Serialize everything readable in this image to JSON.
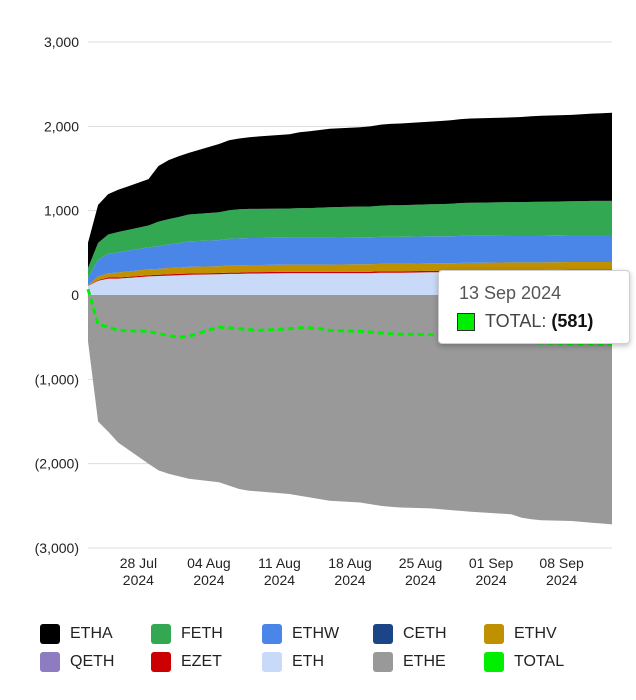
{
  "chart_data": {
    "type": "area",
    "stacked": true,
    "y_ticks": [
      "3,000",
      "2,000",
      "1,000",
      "0",
      "(1,000)",
      "(2,000)",
      "(3,000)"
    ],
    "ylim": [
      -3000,
      3000
    ],
    "x_ticks": [
      {
        "date": "2024-07-28",
        "line1": "28 Jul",
        "line2": "2024"
      },
      {
        "date": "2024-08-04",
        "line1": "04 Aug",
        "line2": "2024"
      },
      {
        "date": "2024-08-11",
        "line1": "11 Aug",
        "line2": "2024"
      },
      {
        "date": "2024-08-18",
        "line1": "18 Aug",
        "line2": "2024"
      },
      {
        "date": "2024-08-25",
        "line1": "25 Aug",
        "line2": "2024"
      },
      {
        "date": "2024-09-01",
        "line1": "01 Sep",
        "line2": "2024"
      },
      {
        "date": "2024-09-08",
        "line1": "08 Sep",
        "line2": "2024"
      }
    ],
    "xlim": [
      "2024-07-23",
      "2024-09-13"
    ],
    "dates": [
      "2024-07-23",
      "2024-07-24",
      "2024-07-25",
      "2024-07-26",
      "2024-07-29",
      "2024-07-30",
      "2024-07-31",
      "2024-08-01",
      "2024-08-02",
      "2024-08-05",
      "2024-08-06",
      "2024-08-07",
      "2024-08-08",
      "2024-08-09",
      "2024-08-12",
      "2024-08-13",
      "2024-08-14",
      "2024-08-15",
      "2024-08-16",
      "2024-08-19",
      "2024-08-20",
      "2024-08-21",
      "2024-08-22",
      "2024-08-23",
      "2024-08-26",
      "2024-08-27",
      "2024-08-28",
      "2024-08-29",
      "2024-08-30",
      "2024-09-03",
      "2024-09-04",
      "2024-09-05",
      "2024-09-06",
      "2024-09-09",
      "2024-09-10",
      "2024-09-11",
      "2024-09-12",
      "2024-09-13"
    ],
    "series": [
      {
        "name": "ETH",
        "color": "#c9daf8",
        "values": [
          107,
          170,
          195,
          195,
          220,
          225,
          230,
          235,
          240,
          245,
          250,
          250,
          255,
          255,
          260,
          260,
          260,
          260,
          260,
          260,
          260,
          265,
          265,
          265,
          270,
          270,
          270,
          275,
          275,
          280,
          280,
          280,
          280,
          285,
          285,
          285,
          285,
          285
        ]
      },
      {
        "name": "EZET",
        "color": "#cc0000",
        "values": [
          3,
          8,
          12,
          12,
          14,
          15,
          15,
          15,
          15,
          16,
          16,
          16,
          16,
          16,
          16,
          16,
          16,
          16,
          16,
          16,
          16,
          16,
          16,
          16,
          16,
          16,
          16,
          16,
          16,
          16,
          16,
          16,
          16,
          16,
          16,
          16,
          16,
          16
        ]
      },
      {
        "name": "QETH",
        "color": "#8e7cc3",
        "values": [
          0,
          0,
          0,
          0,
          0,
          0,
          0,
          0,
          0,
          0,
          0,
          0,
          0,
          0,
          0,
          0,
          0,
          0,
          0,
          0,
          0,
          0,
          0,
          0,
          0,
          0,
          0,
          0,
          0,
          0,
          0,
          0,
          0,
          0,
          0,
          0,
          0,
          0
        ]
      },
      {
        "name": "ETHV",
        "color": "#bf9000",
        "values": [
          10,
          40,
          50,
          60,
          70,
          70,
          75,
          75,
          80,
          80,
          85,
          85,
          85,
          85,
          85,
          85,
          85,
          85,
          85,
          88,
          88,
          88,
          88,
          88,
          90,
          90,
          90,
          90,
          90,
          90,
          90,
          90,
          90,
          90,
          90,
          90,
          90,
          90
        ]
      },
      {
        "name": "CETH",
        "color": "#1c4587",
        "values": [
          0,
          0,
          0,
          0,
          0,
          0,
          0,
          0,
          0,
          0,
          0,
          0,
          0,
          0,
          0,
          0,
          0,
          0,
          0,
          0,
          0,
          0,
          0,
          0,
          0,
          0,
          0,
          0,
          0,
          0,
          0,
          0,
          0,
          0,
          0,
          0,
          0,
          0
        ]
      },
      {
        "name": "ETHW",
        "color": "#4a86e8",
        "values": [
          80,
          200,
          230,
          240,
          260,
          270,
          280,
          290,
          300,
          310,
          315,
          320,
          320,
          320,
          320,
          320,
          320,
          320,
          320,
          320,
          320,
          320,
          320,
          320,
          320,
          320,
          320,
          320,
          320,
          320,
          320,
          320,
          320,
          320,
          320,
          320,
          320,
          320
        ]
      },
      {
        "name": "FETH",
        "color": "#33a853",
        "values": [
          120,
          200,
          230,
          240,
          260,
          290,
          300,
          310,
          320,
          330,
          340,
          345,
          345,
          345,
          345,
          350,
          350,
          355,
          360,
          365,
          365,
          370,
          375,
          375,
          380,
          382,
          385,
          390,
          392,
          395,
          395,
          398,
          400,
          400,
          402,
          405,
          405,
          405
        ]
      },
      {
        "name": "ETHA",
        "color": "#000000",
        "values": [
          300,
          450,
          480,
          500,
          550,
          660,
          700,
          720,
          730,
          810,
          830,
          840,
          850,
          860,
          880,
          900,
          910,
          920,
          930,
          940,
          950,
          960,
          965,
          970,
          980,
          985,
          990,
          995,
          1000,
          1005,
          1010,
          1015,
          1020,
          1025,
          1030,
          1035,
          1040,
          1045
        ]
      }
    ],
    "negative_series": [
      {
        "name": "ETHE",
        "color": "#999999",
        "values": [
          -550,
          -1500,
          -1620,
          -1750,
          -2000,
          -2080,
          -2120,
          -2150,
          -2180,
          -2220,
          -2260,
          -2300,
          -2320,
          -2330,
          -2360,
          -2380,
          -2400,
          -2420,
          -2440,
          -2460,
          -2480,
          -2500,
          -2510,
          -2520,
          -2530,
          -2540,
          -2550,
          -2560,
          -2570,
          -2600,
          -2640,
          -2660,
          -2670,
          -2680,
          -2690,
          -2700,
          -2710,
          -2720
        ]
      }
    ],
    "line_series": [
      {
        "name": "TOTAL",
        "color": "#00ee00",
        "style": "dashed",
        "values": [
          70,
          -350,
          -380,
          -420,
          -430,
          -460,
          -480,
          -500,
          -490,
          -380,
          -390,
          -400,
          -410,
          -420,
          -400,
          -390,
          -390,
          -400,
          -420,
          -430,
          -440,
          -450,
          -460,
          -465,
          -470,
          -475,
          -480,
          -490,
          -495,
          -500,
          -540,
          -560,
          -570,
          -575,
          -578,
          -580,
          -580,
          -581
        ]
      }
    ],
    "legend": {
      "placement": "bottom",
      "rows": [
        [
          "ETHA",
          "FETH",
          "ETHW",
          "CETH",
          "ETHV"
        ],
        [
          "QETH",
          "EZET",
          "ETH",
          "ETHE",
          "TOTAL"
        ]
      ],
      "colors": {
        "ETHA": "#000000",
        "FETH": "#33a853",
        "ETHW": "#4a86e8",
        "CETH": "#1c4587",
        "ETHV": "#bf9000",
        "QETH": "#8e7cc3",
        "EZET": "#cc0000",
        "ETH": "#c9daf8",
        "ETHE": "#999999",
        "TOTAL": "#00ee00"
      }
    },
    "tooltip": {
      "date": "13 Sep 2024",
      "series": "TOTAL",
      "value_text": "(581)",
      "swatch_color": "#00ee00"
    },
    "grid": true
  }
}
